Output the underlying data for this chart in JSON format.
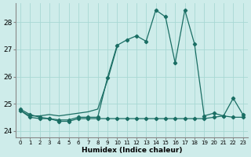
{
  "xlabel": "Humidex (Indice chaleur)",
  "bg_color": "#ceecea",
  "grid_color": "#a8d8d4",
  "line_color": "#1a6e64",
  "xlim": [
    -0.5,
    23.5
  ],
  "ylim": [
    23.75,
    28.7
  ],
  "yticks": [
    24,
    25,
    26,
    27,
    28
  ],
  "xticks": [
    0,
    1,
    2,
    3,
    4,
    5,
    6,
    7,
    8,
    9,
    10,
    11,
    12,
    13,
    14,
    15,
    16,
    17,
    18,
    19,
    20,
    21,
    22,
    23
  ],
  "series1": [
    24.8,
    24.6,
    24.5,
    24.45,
    24.4,
    24.4,
    24.5,
    24.5,
    24.5,
    25.95,
    27.15,
    27.35,
    27.5,
    27.3,
    28.45,
    28.2,
    26.5,
    28.45,
    27.2,
    24.55,
    24.65,
    24.55,
    25.2,
    24.6
  ],
  "series2": [
    24.75,
    24.5,
    24.45,
    24.45,
    24.35,
    24.35,
    24.45,
    24.45,
    24.45,
    24.45,
    24.45,
    24.45,
    24.45,
    24.45,
    24.45,
    24.45,
    24.45,
    24.45,
    24.45,
    24.45,
    24.5,
    24.55,
    24.5,
    24.5
  ],
  "series3": [
    24.75,
    24.55,
    24.55,
    24.6,
    24.55,
    24.6,
    24.65,
    24.7,
    24.8,
    25.85,
    27.1
  ],
  "series3_x": [
    0,
    1,
    2,
    3,
    4,
    5,
    6,
    7,
    8,
    9,
    10
  ],
  "marker_size": 2.2,
  "line_width": 0.9
}
